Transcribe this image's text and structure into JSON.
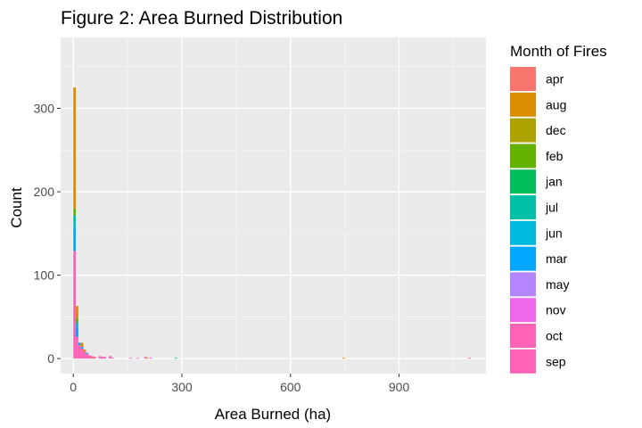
{
  "chart_data": {
    "type": "bar",
    "subtype": "stacked-histogram",
    "title": "Figure 2: Area Burned Distribution",
    "xlabel": "Area Burned (ha)",
    "ylabel": "Count",
    "xlim": [
      -35,
      1140
    ],
    "ylim": [
      -18,
      385
    ],
    "x_ticks": [
      0,
      300,
      600,
      900
    ],
    "y_ticks": [
      0,
      100,
      200,
      300
    ],
    "grid": true,
    "legend": {
      "title": "Month of Fires",
      "position": "right"
    },
    "series": [
      {
        "name": "apr",
        "color": "#F8766D",
        "bins": []
      },
      {
        "name": "aug",
        "color": "#DB8E00",
        "bins": [
          {
            "x": 0,
            "count": 145
          },
          {
            "x": 7,
            "count": 14
          },
          {
            "x": 21,
            "count": 5
          },
          {
            "x": 28,
            "count": 3
          },
          {
            "x": 50,
            "count": 1
          },
          {
            "x": 200,
            "count": 1
          },
          {
            "x": 743,
            "count": 1
          }
        ]
      },
      {
        "name": "dec",
        "color": "#AEA200",
        "bins": []
      },
      {
        "name": "feb",
        "color": "#64B200",
        "bins": [
          {
            "x": 0,
            "count": 8
          },
          {
            "x": 7,
            "count": 5
          }
        ]
      },
      {
        "name": "jan",
        "color": "#00BD5C",
        "bins": []
      },
      {
        "name": "jul",
        "color": "#00C1A7",
        "bins": [
          {
            "x": 0,
            "count": 10
          },
          {
            "x": 7,
            "count": 3
          },
          {
            "x": 280,
            "count": 1
          }
        ]
      },
      {
        "name": "jun",
        "color": "#00BADE",
        "bins": [
          {
            "x": 0,
            "count": 5
          },
          {
            "x": 7,
            "count": 3
          }
        ]
      },
      {
        "name": "mar",
        "color": "#00A6FF",
        "bins": [
          {
            "x": 0,
            "count": 28
          },
          {
            "x": 7,
            "count": 12
          },
          {
            "x": 14,
            "count": 3
          },
          {
            "x": 21,
            "count": 2
          },
          {
            "x": 35,
            "count": 1
          }
        ]
      },
      {
        "name": "may",
        "color": "#B385FF",
        "bins": []
      },
      {
        "name": "nov",
        "color": "#EF67EB",
        "bins": []
      },
      {
        "name": "oct",
        "color": "#FF63B6",
        "bins": []
      },
      {
        "name": "sep",
        "color": "#FF63B6",
        "bins": [
          {
            "x": 0,
            "count": 129
          },
          {
            "x": 7,
            "count": 26
          },
          {
            "x": 14,
            "count": 16
          },
          {
            "x": 21,
            "count": 12
          },
          {
            "x": 28,
            "count": 8
          },
          {
            "x": 35,
            "count": 6
          },
          {
            "x": 42,
            "count": 4
          },
          {
            "x": 49,
            "count": 3
          },
          {
            "x": 56,
            "count": 2
          },
          {
            "x": 70,
            "count": 3
          },
          {
            "x": 77,
            "count": 2
          },
          {
            "x": 84,
            "count": 2
          },
          {
            "x": 98,
            "count": 3
          },
          {
            "x": 105,
            "count": 1
          },
          {
            "x": 155,
            "count": 1
          },
          {
            "x": 175,
            "count": 1
          },
          {
            "x": 196,
            "count": 2
          },
          {
            "x": 210,
            "count": 1
          },
          {
            "x": 1091,
            "count": 1
          }
        ]
      }
    ],
    "bin_width": 7
  }
}
